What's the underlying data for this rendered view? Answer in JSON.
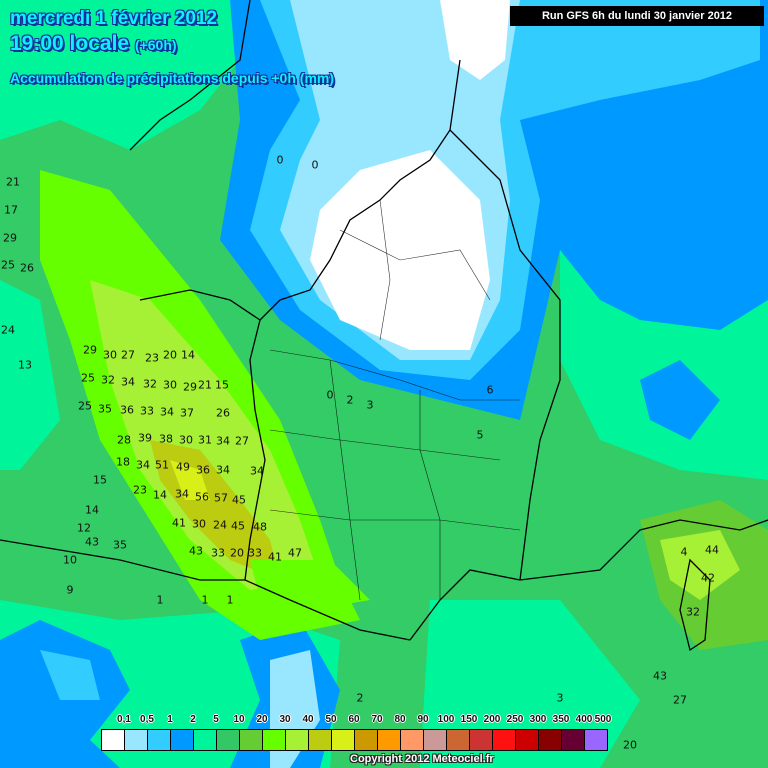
{
  "header": {
    "date": "mercredi 1 février 2012",
    "time": "19:00 locale",
    "lead": "(+60h)",
    "product": "Accumulation de précipitations depuis +0h (mm)"
  },
  "run_label": "Run GFS 6h du lundi 30 janvier 2012",
  "copyright": "Copyright 2012 Meteociel.fr",
  "legend": {
    "labels": [
      "0,1",
      "0,5",
      "1",
      "2",
      "5",
      "10",
      "20",
      "30",
      "40",
      "50",
      "60",
      "70",
      "80",
      "90",
      "100",
      "150",
      "200",
      "250",
      "300",
      "350",
      "400",
      "500"
    ],
    "colors": [
      "#ffffff",
      "#99e6ff",
      "#33ccff",
      "#0099ff",
      "#00f59a",
      "#33c766",
      "#66cc33",
      "#66ff00",
      "#a6f035",
      "#bbcc11",
      "#d9ef18",
      "#cc9900",
      "#ff9900",
      "#ff9966",
      "#cc9999",
      "#cc6633",
      "#cc3333",
      "#ff1111",
      "#cc0000",
      "#880000",
      "#660033",
      "#9966ff"
    ]
  },
  "values": [
    "29",
    "30",
    "27",
    "23",
    "20",
    "14",
    "25",
    "32",
    "34",
    "32",
    "30",
    "29",
    "21",
    "15",
    "25",
    "35",
    "36",
    "33",
    "34",
    "37",
    "26",
    "28",
    "39",
    "38",
    "30",
    "31",
    "34",
    "27",
    "18",
    "34",
    "51",
    "49",
    "36",
    "34",
    "34",
    "23",
    "14",
    "34",
    "56",
    "57",
    "45",
    "41",
    "30",
    "24",
    "45",
    "48",
    "43",
    "33",
    "20",
    "33",
    "41",
    "47",
    "43",
    "35",
    "21",
    "17",
    "29",
    "25",
    "26",
    "24",
    "13",
    "15",
    "14",
    "12",
    "10",
    "9",
    "1",
    "1",
    "1",
    "0",
    "0",
    "0",
    "2",
    "3",
    "5",
    "6",
    "4",
    "44",
    "42",
    "32",
    "43",
    "27",
    "20",
    "3",
    "2",
    "0"
  ]
}
